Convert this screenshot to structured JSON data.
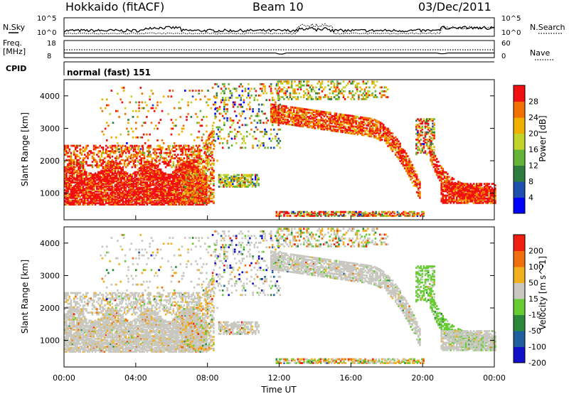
{
  "header": {
    "station": "Hokkaido (fitACF)",
    "beam": "Beam 10",
    "date": "03/Dec/2011"
  },
  "sky_panel": {
    "left_label": "N.Sky",
    "right_label": "N.Search",
    "left_ticks": [
      "10^5",
      "10^0"
    ],
    "right_ticks": [
      "10^5",
      "10^0"
    ]
  },
  "freq_panel": {
    "left_label_1": "Freq.",
    "left_label_2": "[MHz]",
    "right_label": "Nave",
    "left_ticks": [
      "18",
      "8"
    ],
    "right_ticks": [
      "60",
      "0"
    ]
  },
  "cpid_panel": {
    "label": "CPID",
    "value": "normal (fast) 151"
  },
  "chart_data": [
    {
      "type": "heatmap",
      "name": "power",
      "ylabel": "Slant Range [km]",
      "xlabel": "",
      "ylim": [
        180,
        4500
      ],
      "xlim": [
        0,
        24
      ],
      "y_ticks": [
        "1000",
        "2000",
        "3000",
        "4000"
      ],
      "colorbar": {
        "label": "Power [dB]",
        "ticks": [
          "28",
          "24",
          "20",
          "16",
          "12",
          "8",
          "4"
        ],
        "colors": [
          "#0000ff",
          "#1f4fae",
          "#2e7d3f",
          "#66b33a",
          "#c2d42c",
          "#f0b000",
          "#f07000",
          "#f01010"
        ]
      }
    },
    {
      "type": "heatmap",
      "name": "velocity",
      "ylabel": "Slant Range [km]",
      "xlabel": "Time UT",
      "ylim": [
        180,
        4500
      ],
      "xlim": [
        0,
        24
      ],
      "y_ticks": [
        "1000",
        "2000",
        "3000",
        "4000"
      ],
      "x_ticks": [
        "00:00",
        "04:00",
        "08:00",
        "12:00",
        "16:00",
        "20:00",
        "00:00"
      ],
      "colorbar": {
        "label": "Velocity [m s^-1]",
        "ticks": [
          "200",
          "100",
          "50",
          "15",
          "-15",
          "-50",
          "-100",
          "-200"
        ],
        "colors": [
          "#1010c8",
          "#1f5fa0",
          "#2a8a3a",
          "#66cc33",
          "#c8c8c0",
          "#f0b020",
          "#f07010",
          "#f02010"
        ]
      }
    }
  ]
}
